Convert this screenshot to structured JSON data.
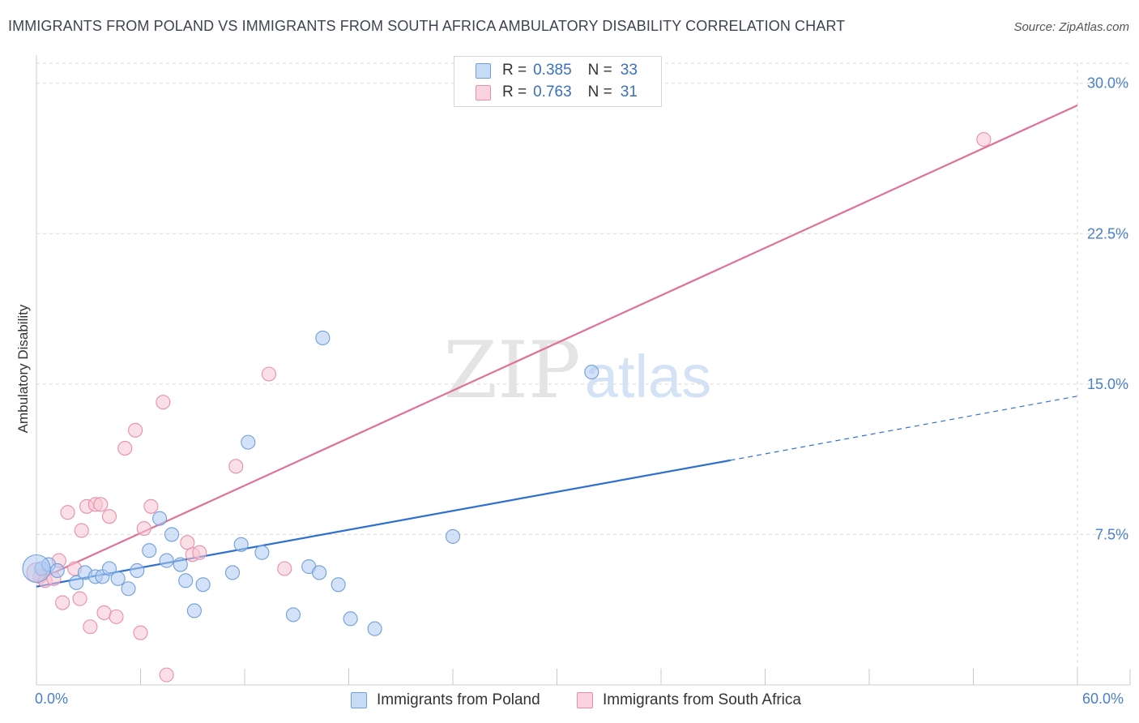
{
  "header": {
    "title": "IMMIGRANTS FROM POLAND VS IMMIGRANTS FROM SOUTH AFRICA AMBULATORY DISABILITY CORRELATION CHART",
    "source": "Source: ZipAtlas.com"
  },
  "legend": {
    "rows": [
      {
        "r_label": "R =",
        "r_value": "0.385",
        "n_label": "N =",
        "n_value": "33"
      },
      {
        "r_label": "R =",
        "r_value": "0.763",
        "n_label": "N =",
        "n_value": "31"
      }
    ]
  },
  "bottom_legend": {
    "poland": "Immigrants from Poland",
    "south_africa": "Immigrants from South Africa"
  },
  "x_axis": {
    "min_label": "0.0%",
    "max_label": "60.0%"
  },
  "watermark": {
    "zip": "ZIP",
    "atlas": "atlas"
  },
  "colors": {
    "poland_fill": "#aecbf2",
    "poland_stroke": "#6f9fd8",
    "poland_line": "#2e6fcf",
    "sa_fill": "#f8c4d4",
    "sa_stroke": "#e88fab",
    "sa_line": "#e07098",
    "tick_text": "#4a7fc9",
    "grid": "#d8d8d8"
  },
  "chart_data": {
    "type": "scatter",
    "title": "IMMIGRANTS FROM POLAND VS IMMIGRANTS FROM SOUTH AFRICA AMBULATORY DISABILITY CORRELATION CHART",
    "xlabel": "",
    "ylabel": "Ambulatory Disability",
    "xlim": [
      0,
      60
    ],
    "ylim": [
      0,
      31
    ],
    "y_ticks": [
      7.5,
      15.0,
      22.5,
      30.0
    ],
    "y_tick_labels": [
      "7.5%",
      "15.0%",
      "22.5%",
      "30.0%"
    ],
    "grid": true,
    "series": [
      {
        "name": "Immigrants from Poland",
        "r": 0.385,
        "n": 33,
        "points": [
          [
            0.3,
            5.8
          ],
          [
            0.7,
            6.0
          ],
          [
            1.2,
            5.7
          ],
          [
            2.3,
            5.1
          ],
          [
            2.8,
            5.6
          ],
          [
            3.4,
            5.4
          ],
          [
            3.8,
            5.4
          ],
          [
            4.2,
            5.8
          ],
          [
            4.7,
            5.3
          ],
          [
            5.3,
            4.8
          ],
          [
            5.8,
            5.7
          ],
          [
            6.5,
            6.7
          ],
          [
            7.1,
            8.3
          ],
          [
            7.5,
            6.2
          ],
          [
            7.8,
            7.5
          ],
          [
            8.3,
            6.0
          ],
          [
            8.6,
            5.2
          ],
          [
            9.1,
            3.7
          ],
          [
            9.6,
            5.0
          ],
          [
            11.3,
            5.6
          ],
          [
            11.8,
            7.0
          ],
          [
            12.2,
            12.1
          ],
          [
            13.0,
            6.6
          ],
          [
            14.8,
            3.5
          ],
          [
            15.7,
            5.9
          ],
          [
            16.5,
            17.3
          ],
          [
            16.3,
            5.6
          ],
          [
            17.4,
            5.0
          ],
          [
            18.1,
            3.3
          ],
          [
            19.5,
            2.8
          ],
          [
            24.0,
            7.4
          ],
          [
            32.0,
            15.6
          ],
          [
            0.0,
            5.8
          ]
        ],
        "trend": {
          "x0": 0,
          "y0": 4.9,
          "x1": 40,
          "y1": 11.2,
          "dash_x1": 60,
          "dash_y1": 14.4
        }
      },
      {
        "name": "Immigrants from South Africa",
        "r": 0.763,
        "n": 31,
        "points": [
          [
            0.2,
            5.4
          ],
          [
            0.5,
            5.2
          ],
          [
            1.0,
            5.3
          ],
          [
            1.3,
            6.2
          ],
          [
            1.5,
            4.1
          ],
          [
            1.8,
            8.6
          ],
          [
            2.2,
            5.8
          ],
          [
            2.5,
            4.3
          ],
          [
            2.6,
            7.7
          ],
          [
            2.9,
            8.9
          ],
          [
            3.1,
            2.9
          ],
          [
            3.4,
            9.0
          ],
          [
            3.7,
            9.0
          ],
          [
            3.9,
            3.6
          ],
          [
            4.2,
            8.4
          ],
          [
            4.6,
            3.4
          ],
          [
            5.1,
            11.8
          ],
          [
            5.7,
            12.7
          ],
          [
            6.0,
            2.6
          ],
          [
            6.2,
            7.8
          ],
          [
            6.6,
            8.9
          ],
          [
            7.3,
            14.1
          ],
          [
            7.5,
            0.5
          ],
          [
            8.7,
            7.1
          ],
          [
            9.0,
            6.5
          ],
          [
            9.4,
            6.6
          ],
          [
            11.5,
            10.9
          ],
          [
            13.4,
            15.5
          ],
          [
            14.3,
            5.8
          ],
          [
            54.6,
            27.2
          ],
          [
            0.0,
            5.6
          ]
        ],
        "trend": {
          "x0": 0,
          "y0": 5.2,
          "x1": 60,
          "y1": 28.9
        }
      }
    ]
  }
}
